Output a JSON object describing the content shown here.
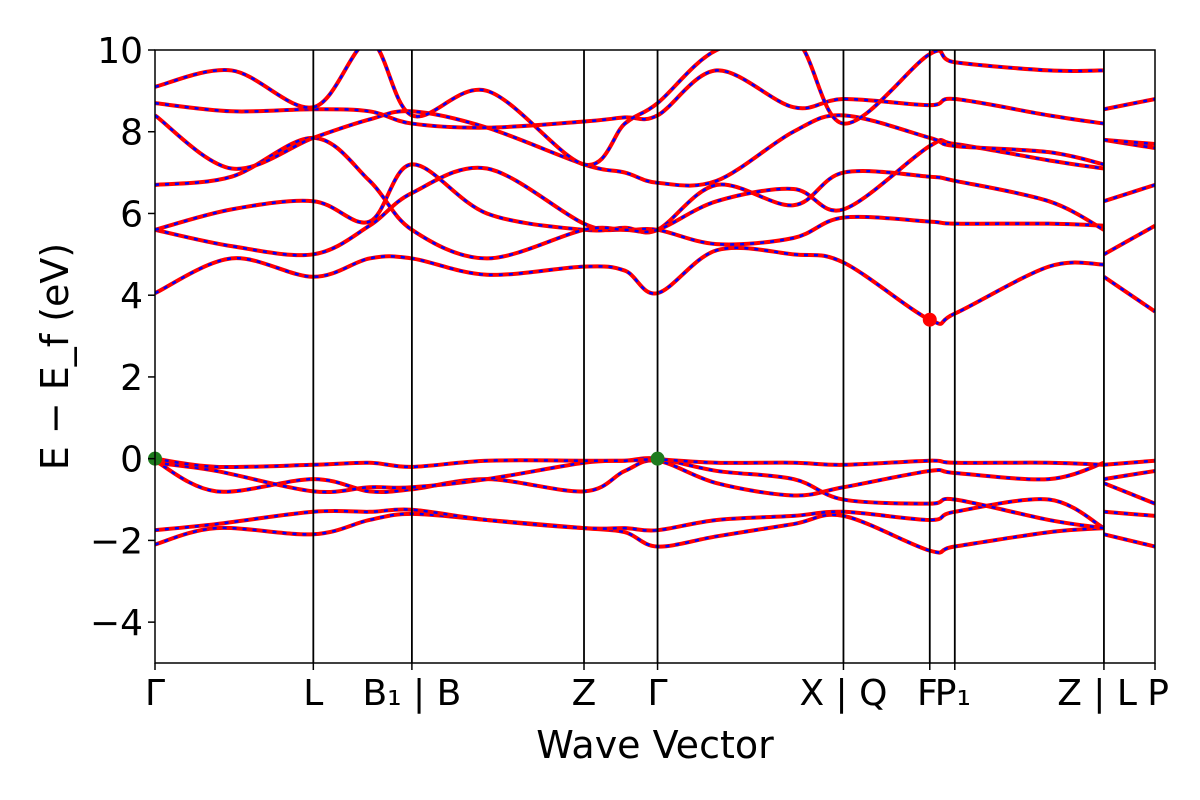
{
  "chart_data": {
    "type": "line",
    "title": "",
    "xlabel": "Wave Vector",
    "ylabel": "E − E_f (eV)",
    "ylim": [
      -5,
      10
    ],
    "yticks": [
      -4,
      -2,
      0,
      2,
      4,
      6,
      8,
      10
    ],
    "grid": false,
    "legend": "none",
    "kpath": [
      {
        "label": "Γ",
        "x": 0
      },
      {
        "label": "L",
        "x": 3.1
      },
      {
        "label": "B₁ | B",
        "x": 5.03
      },
      {
        "label": "Z",
        "x": 8.4
      },
      {
        "label": "Γ",
        "x": 9.84
      },
      {
        "label": "X | Q",
        "x": 13.48
      },
      {
        "label": "F",
        "x": 15.17
      },
      {
        "label": "P₁",
        "x": 15.66
      },
      {
        "label": "Z | L",
        "x": 18.58
      },
      {
        "label": "P",
        "x": 19.58
      }
    ],
    "series_style": {
      "line_color": "#ff0000",
      "dash_color": "#0000ff"
    },
    "markers": [
      {
        "name": "VBM",
        "x": 0,
        "y": 0,
        "color": "#1e7b1e"
      },
      {
        "name": "VBM",
        "x": 9.84,
        "y": 0,
        "color": "#1e7b1e"
      },
      {
        "name": "CBM",
        "x": 15.17,
        "y": 3.4,
        "color": "#ff0000"
      }
    ],
    "bands": [
      {
        "x": [
          0,
          1.2,
          3.1,
          4.2,
          5.03,
          6.5,
          8.4,
          9.2,
          9.84,
          11,
          12.5,
          13.48,
          15.17,
          15.66,
          17.5,
          18.58,
          18.58,
          19.58
        ],
        "y": [
          -2.1,
          -1.7,
          -1.85,
          -1.5,
          -1.35,
          -1.5,
          -1.7,
          -1.8,
          -2.15,
          -1.9,
          -1.6,
          -1.4,
          -2.25,
          -2.15,
          -1.8,
          -1.7,
          -1.85,
          -2.15
        ]
      },
      {
        "x": [
          0,
          1.2,
          3.1,
          4.2,
          5.03,
          6.5,
          8.4,
          9.2,
          9.84,
          11,
          12.5,
          13.48,
          15.17,
          15.66,
          17.5,
          18.58,
          18.58,
          19.58
        ],
        "y": [
          -1.75,
          -1.6,
          -1.3,
          -1.3,
          -1.25,
          -1.5,
          -1.7,
          -1.7,
          -1.75,
          -1.5,
          -1.4,
          -1.3,
          -1.5,
          -1.3,
          -1.0,
          -1.7,
          -1.3,
          -1.4
        ]
      },
      {
        "x": [
          0,
          1.2,
          3.1,
          4.2,
          5.03,
          6.5,
          8.4,
          9.2,
          9.84,
          11,
          12.5,
          13.48,
          15.17,
          15.66,
          17.5,
          18.58,
          18.58,
          19.58
        ],
        "y": [
          -0.05,
          -0.8,
          -0.5,
          -0.8,
          -0.75,
          -0.5,
          -0.8,
          -0.3,
          -0.05,
          -0.6,
          -0.9,
          -0.7,
          -0.3,
          -0.35,
          -0.5,
          -0.1,
          -0.6,
          -1.1
        ]
      },
      {
        "x": [
          0,
          1.2,
          3.1,
          4.2,
          5.03,
          6.5,
          8.4,
          9.2,
          9.84,
          11,
          12.5,
          13.48,
          15.17,
          15.66,
          17.5,
          18.58,
          18.58,
          19.58
        ],
        "y": [
          -0.1,
          -0.3,
          -0.8,
          -0.7,
          -0.7,
          -0.5,
          -0.1,
          -0.05,
          0.0,
          -0.3,
          -0.5,
          -1.0,
          -1.1,
          -1.0,
          -1.5,
          -1.7,
          -0.5,
          -0.3
        ]
      },
      {
        "x": [
          0,
          1.2,
          3.1,
          4.2,
          5.03,
          6.5,
          8.4,
          9.2,
          9.84,
          11,
          12.5,
          13.48,
          15.17,
          15.66,
          17.5,
          18.58,
          18.58,
          19.58
        ],
        "y": [
          0.0,
          -0.2,
          -0.15,
          -0.1,
          -0.2,
          -0.05,
          -0.05,
          -0.05,
          -0.02,
          -0.1,
          -0.1,
          -0.15,
          -0.05,
          -0.1,
          -0.1,
          -0.15,
          -0.15,
          -0.05
        ]
      },
      {
        "x": [
          0,
          1.5,
          3.1,
          4.2,
          5.03,
          6.5,
          8.4,
          9.2,
          9.84,
          11,
          12.5,
          13.48,
          15.17,
          15.66,
          17.5,
          18.58,
          18.58,
          19.58
        ],
        "y": [
          4.05,
          4.9,
          4.45,
          4.9,
          4.9,
          4.5,
          4.7,
          4.6,
          4.05,
          5.1,
          5.0,
          4.8,
          3.4,
          3.55,
          4.7,
          4.75,
          4.45,
          3.6
        ]
      },
      {
        "x": [
          0,
          1.5,
          3.1,
          4.2,
          5.03,
          6.5,
          8.4,
          9.2,
          9.84,
          11,
          12.5,
          13.48,
          15.17,
          15.66,
          17.5,
          18.58,
          18.58,
          19.58
        ],
        "y": [
          5.6,
          5.2,
          5.0,
          5.7,
          6.5,
          7.1,
          5.75,
          5.6,
          5.6,
          5.25,
          5.4,
          5.9,
          5.8,
          5.75,
          5.75,
          5.7,
          5.0,
          5.7
        ]
      },
      {
        "x": [
          0,
          1.5,
          3.1,
          4.2,
          5.03,
          6.5,
          8.4,
          9.2,
          9.84,
          11,
          12.5,
          13.48,
          15.17,
          15.66,
          17.5,
          18.58,
          18.58,
          19.58
        ],
        "y": [
          5.6,
          6.1,
          6.3,
          5.8,
          7.2,
          6.0,
          5.6,
          5.65,
          5.6,
          6.7,
          6.2,
          7.0,
          6.9,
          6.8,
          6.3,
          5.6,
          6.3,
          6.7
        ]
      },
      {
        "x": [
          0,
          1.5,
          3.1,
          4.2,
          5.03,
          6.5,
          8.4,
          9.2,
          9.84,
          11,
          12.5,
          13.48,
          15.17,
          15.66,
          17.5,
          18.58,
          18.58,
          19.58
        ],
        "y": [
          6.7,
          6.9,
          7.85,
          6.8,
          5.6,
          4.9,
          5.6,
          5.6,
          5.6,
          6.3,
          6.6,
          6.1,
          7.65,
          7.7,
          7.3,
          7.1,
          7.8,
          7.6
        ]
      },
      {
        "x": [
          0,
          1.5,
          3.1,
          4.2,
          5.03,
          6.5,
          8.4,
          9.2,
          9.84,
          11,
          12.5,
          13.48,
          15.17,
          15.66,
          17.5,
          18.58,
          18.58,
          19.58
        ],
        "y": [
          8.4,
          7.1,
          7.85,
          8.3,
          8.5,
          8.1,
          7.2,
          7.0,
          6.75,
          6.8,
          8.0,
          8.4,
          7.85,
          7.65,
          7.5,
          7.2,
          7.8,
          7.7
        ]
      },
      {
        "x": [
          0,
          1.5,
          3.1,
          4.2,
          5.03,
          6.5,
          8.4,
          9.2,
          9.84,
          11,
          12.5,
          13.48,
          15.17,
          15.66,
          17.5,
          18.58,
          18.58,
          19.58
        ],
        "y": [
          8.7,
          8.5,
          8.55,
          8.5,
          8.2,
          8.1,
          8.25,
          8.35,
          8.4,
          9.5,
          8.6,
          8.8,
          8.65,
          8.8,
          8.4,
          8.2,
          8.55,
          8.8
        ]
      },
      {
        "x": [
          0,
          1.5,
          3.1,
          4.2,
          5.03,
          6.5,
          8.4,
          9.2,
          9.84,
          11,
          12.5,
          13.48,
          15.17,
          15.66,
          17.5,
          18.58
        ],
        "y": [
          9.1,
          9.5,
          8.6,
          10.2,
          8.4,
          9.0,
          7.2,
          8.2,
          8.7,
          10.0,
          10.3,
          8.2,
          9.9,
          9.7,
          9.5,
          9.5
        ]
      }
    ]
  }
}
